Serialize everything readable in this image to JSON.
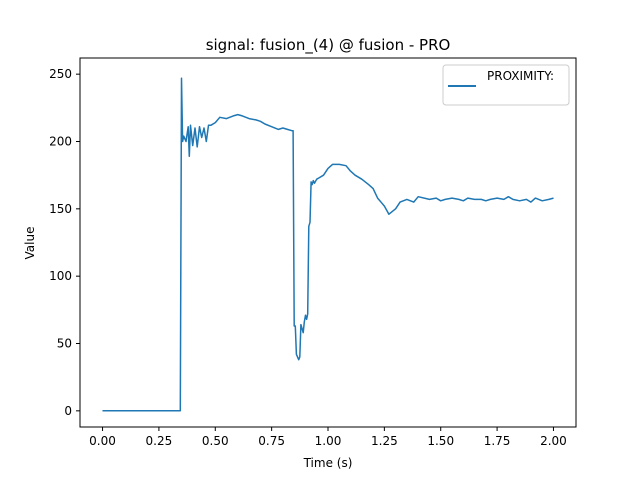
{
  "chart_data": {
    "type": "line",
    "title": "signal: fusion_(4) @ fusion - PRO",
    "xlabel": "Time (s)",
    "ylabel": "Value",
    "xlim": [
      -0.1,
      2.1
    ],
    "ylim": [
      -12,
      262
    ],
    "xticks": [
      0.0,
      0.25,
      0.5,
      0.75,
      1.0,
      1.25,
      1.5,
      1.75,
      2.0
    ],
    "xtick_labels": [
      "0.00",
      "0.25",
      "0.50",
      "0.75",
      "1.00",
      "1.25",
      "1.50",
      "1.75",
      "2.00"
    ],
    "yticks": [
      0,
      50,
      100,
      150,
      200,
      250
    ],
    "ytick_labels": [
      "0",
      "50",
      "100",
      "150",
      "200",
      "250"
    ],
    "grid": false,
    "legend_position": "top-right",
    "series": [
      {
        "name": "PROXIMITY:",
        "color": "#1f77b4",
        "x": [
          0.0,
          0.34,
          0.345,
          0.35,
          0.355,
          0.36,
          0.37,
          0.38,
          0.385,
          0.39,
          0.4,
          0.41,
          0.42,
          0.43,
          0.44,
          0.45,
          0.46,
          0.47,
          0.48,
          0.5,
          0.52,
          0.55,
          0.58,
          0.6,
          0.62,
          0.65,
          0.68,
          0.7,
          0.72,
          0.75,
          0.78,
          0.8,
          0.82,
          0.84,
          0.845,
          0.85,
          0.855,
          0.86,
          0.87,
          0.875,
          0.88,
          0.89,
          0.895,
          0.9,
          0.905,
          0.91,
          0.915,
          0.92,
          0.925,
          0.93,
          0.935,
          0.94,
          0.95,
          0.96,
          0.98,
          1.0,
          1.02,
          1.05,
          1.08,
          1.1,
          1.12,
          1.15,
          1.18,
          1.2,
          1.22,
          1.25,
          1.27,
          1.3,
          1.32,
          1.35,
          1.38,
          1.4,
          1.45,
          1.48,
          1.5,
          1.52,
          1.55,
          1.58,
          1.6,
          1.62,
          1.65,
          1.68,
          1.7,
          1.72,
          1.75,
          1.78,
          1.8,
          1.82,
          1.85,
          1.88,
          1.9,
          1.92,
          1.95,
          1.98,
          2.0
        ],
        "y": [
          0,
          0,
          0,
          247,
          200,
          204,
          200,
          211,
          189,
          212,
          197,
          210,
          196,
          211,
          203,
          210,
          200,
          212,
          212,
          214,
          218,
          217,
          219,
          220,
          219,
          217,
          216,
          215,
          213,
          211,
          209,
          210,
          209,
          208,
          208,
          63,
          63,
          42,
          38,
          40,
          64,
          58,
          66,
          71,
          68,
          72,
          137,
          140,
          170,
          168,
          171,
          169,
          172,
          173,
          175,
          180,
          183,
          183,
          182,
          178,
          175,
          172,
          168,
          165,
          158,
          152,
          146,
          150,
          155,
          157,
          155,
          159,
          157,
          158,
          156,
          157,
          158,
          157,
          156,
          158,
          157,
          157,
          156,
          157,
          158,
          157,
          159,
          157,
          156,
          157,
          155,
          158,
          156,
          157,
          158
        ]
      }
    ]
  }
}
